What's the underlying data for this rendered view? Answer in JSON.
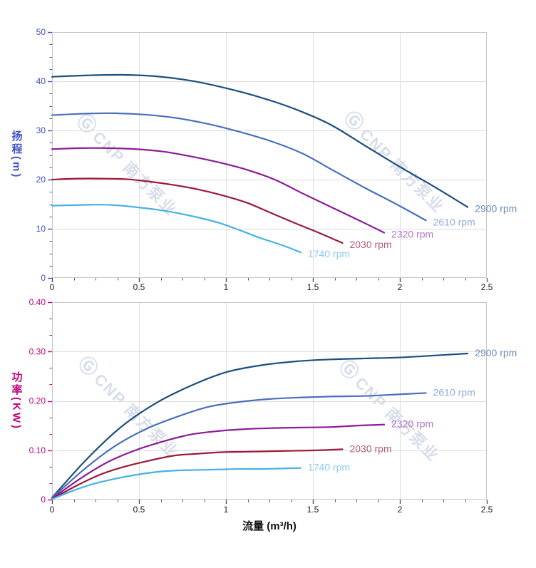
{
  "watermark": {
    "logo": "Ⓖ",
    "text": "CNP 南方泵业"
  },
  "x_axis": {
    "title": "流量 (m³/h)",
    "min": 0,
    "max": 2.5,
    "major_step": 0.5,
    "minor_divisions": 4,
    "tick_labels": [
      "0",
      "0.5",
      "1",
      "1.5",
      "2",
      "2.5"
    ],
    "text_color": "#1b1b1b",
    "tick_color": "#555555"
  },
  "style": {
    "grid_color": "#dcdcdc",
    "border_color": "#c6c6c6",
    "background": "#ffffff"
  },
  "chart_data": [
    {
      "id": "head",
      "type": "line",
      "y_title": "扬程(m)",
      "xlabel": "流量 (m³/h)",
      "ylabel": "扬程 (m)",
      "ylim": [
        0,
        50
      ],
      "xlim": [
        0,
        2.5
      ],
      "y_major_step": 10,
      "y_minor_divisions": 4,
      "y_tick_labels": [
        "0",
        "10",
        "20",
        "30",
        "40",
        "50"
      ],
      "axis_color": "#3f51c1",
      "legend_position": "end-of-line",
      "series": [
        {
          "name": "2900 rpm",
          "rpm": 2900,
          "color": "#1b4f7f",
          "label_color": "#6e8cb4",
          "points": [
            [
              0,
              40.9
            ],
            [
              0.2,
              41.2
            ],
            [
              0.4,
              41.3
            ],
            [
              0.6,
              41.0
            ],
            [
              0.8,
              40.1
            ],
            [
              1.0,
              38.6
            ],
            [
              1.2,
              36.7
            ],
            [
              1.4,
              34.3
            ],
            [
              1.6,
              31.2
            ],
            [
              1.8,
              26.9
            ],
            [
              2.0,
              22.6
            ],
            [
              2.2,
              18.5
            ],
            [
              2.39,
              14.4
            ]
          ]
        },
        {
          "name": "2610 rpm",
          "rpm": 2610,
          "color": "#4a6fbe",
          "label_color": "#91abde",
          "points": [
            [
              0,
              33.1
            ],
            [
              0.18,
              33.4
            ],
            [
              0.36,
              33.5
            ],
            [
              0.54,
              33.2
            ],
            [
              0.72,
              32.5
            ],
            [
              0.9,
              31.3
            ],
            [
              1.08,
              29.7
            ],
            [
              1.26,
              27.8
            ],
            [
              1.44,
              25.3
            ],
            [
              1.62,
              21.8
            ],
            [
              1.8,
              18.3
            ],
            [
              1.98,
              15.0
            ],
            [
              2.15,
              11.7
            ]
          ]
        },
        {
          "name": "2320 rpm",
          "rpm": 2320,
          "color": "#8d1a97",
          "label_color": "#b377c7",
          "points": [
            [
              0,
              26.2
            ],
            [
              0.16,
              26.4
            ],
            [
              0.32,
              26.4
            ],
            [
              0.48,
              26.2
            ],
            [
              0.64,
              25.7
            ],
            [
              0.8,
              24.7
            ],
            [
              0.96,
              23.5
            ],
            [
              1.12,
              22.0
            ],
            [
              1.28,
              20.0
            ],
            [
              1.44,
              17.2
            ],
            [
              1.6,
              14.5
            ],
            [
              1.76,
              11.8
            ],
            [
              1.91,
              9.2
            ]
          ]
        },
        {
          "name": "2030 rpm",
          "rpm": 2030,
          "color": "#9c1a38",
          "label_color": "#b25f78",
          "points": [
            [
              0,
              20.0
            ],
            [
              0.14,
              20.2
            ],
            [
              0.28,
              20.2
            ],
            [
              0.42,
              20.1
            ],
            [
              0.56,
              19.6
            ],
            [
              0.7,
              18.9
            ],
            [
              0.84,
              18.0
            ],
            [
              0.98,
              16.8
            ],
            [
              1.12,
              15.3
            ],
            [
              1.26,
              13.2
            ],
            [
              1.4,
              11.1
            ],
            [
              1.54,
              9.1
            ],
            [
              1.67,
              7.1
            ]
          ]
        },
        {
          "name": "1740 rpm",
          "rpm": 1740,
          "color": "#45b1e6",
          "label_color": "#92c9ee",
          "points": [
            [
              0,
              14.7
            ],
            [
              0.12,
              14.8
            ],
            [
              0.24,
              14.9
            ],
            [
              0.36,
              14.8
            ],
            [
              0.48,
              14.4
            ],
            [
              0.6,
              13.9
            ],
            [
              0.72,
              13.2
            ],
            [
              0.84,
              12.3
            ],
            [
              0.96,
              11.2
            ],
            [
              1.08,
              9.7
            ],
            [
              1.2,
              8.1
            ],
            [
              1.32,
              6.7
            ],
            [
              1.43,
              5.2
            ]
          ]
        }
      ]
    },
    {
      "id": "power",
      "type": "line",
      "y_title": "功率(KW)",
      "xlabel": "流量 (m³/h)",
      "ylabel": "功率 (KW)",
      "ylim": [
        0,
        0.4
      ],
      "xlim": [
        0,
        2.5
      ],
      "y_major_step": 0.1,
      "y_minor_divisions": 3,
      "y_tick_labels": [
        "0",
        "0.10",
        "0.20",
        "0.30",
        "0.40"
      ],
      "axis_color": "#c0067f",
      "legend_position": "end-of-line",
      "series": [
        {
          "name": "2900 rpm",
          "rpm": 2900,
          "color": "#1b4f7f",
          "label_color": "#6e8cb4",
          "points": [
            [
              0,
              0.004
            ],
            [
              0.2,
              0.082
            ],
            [
              0.4,
              0.148
            ],
            [
              0.6,
              0.196
            ],
            [
              0.8,
              0.231
            ],
            [
              1.0,
              0.258
            ],
            [
              1.2,
              0.272
            ],
            [
              1.4,
              0.28
            ],
            [
              1.6,
              0.284
            ],
            [
              1.8,
              0.286
            ],
            [
              2.0,
              0.288
            ],
            [
              2.2,
              0.292
            ],
            [
              2.39,
              0.296
            ]
          ]
        },
        {
          "name": "2610 rpm",
          "rpm": 2610,
          "color": "#4a6fbe",
          "label_color": "#91abde",
          "points": [
            [
              0,
              0.003
            ],
            [
              0.18,
              0.06
            ],
            [
              0.36,
              0.108
            ],
            [
              0.54,
              0.143
            ],
            [
              0.72,
              0.168
            ],
            [
              0.9,
              0.188
            ],
            [
              1.08,
              0.198
            ],
            [
              1.26,
              0.204
            ],
            [
              1.44,
              0.207
            ],
            [
              1.62,
              0.209
            ],
            [
              1.8,
              0.21
            ],
            [
              1.98,
              0.213
            ],
            [
              2.15,
              0.216
            ]
          ]
        },
        {
          "name": "2320 rpm",
          "rpm": 2320,
          "color": "#8d1a97",
          "label_color": "#b377c7",
          "points": [
            [
              0,
              0.002
            ],
            [
              0.16,
              0.042
            ],
            [
              0.32,
              0.076
            ],
            [
              0.48,
              0.1
            ],
            [
              0.64,
              0.118
            ],
            [
              0.8,
              0.132
            ],
            [
              0.96,
              0.139
            ],
            [
              1.12,
              0.143
            ],
            [
              1.28,
              0.145
            ],
            [
              1.44,
              0.146
            ],
            [
              1.6,
              0.147
            ],
            [
              1.76,
              0.15
            ],
            [
              1.91,
              0.152
            ]
          ]
        },
        {
          "name": "2030 rpm",
          "rpm": 2030,
          "color": "#9c1a38",
          "label_color": "#b25f78",
          "points": [
            [
              0,
              0.001
            ],
            [
              0.14,
              0.028
            ],
            [
              0.28,
              0.051
            ],
            [
              0.42,
              0.067
            ],
            [
              0.56,
              0.079
            ],
            [
              0.7,
              0.089
            ],
            [
              0.84,
              0.093
            ],
            [
              0.98,
              0.096
            ],
            [
              1.12,
              0.097
            ],
            [
              1.26,
              0.098
            ],
            [
              1.4,
              0.099
            ],
            [
              1.54,
              0.1
            ],
            [
              1.67,
              0.102
            ]
          ]
        },
        {
          "name": "1740 rpm",
          "rpm": 1740,
          "color": "#45b1e6",
          "label_color": "#92c9ee",
          "points": [
            [
              0,
              0.001
            ],
            [
              0.12,
              0.018
            ],
            [
              0.24,
              0.032
            ],
            [
              0.36,
              0.042
            ],
            [
              0.48,
              0.05
            ],
            [
              0.6,
              0.056
            ],
            [
              0.72,
              0.059
            ],
            [
              0.84,
              0.06
            ],
            [
              0.96,
              0.061
            ],
            [
              1.08,
              0.062
            ],
            [
              1.2,
              0.062
            ],
            [
              1.32,
              0.063
            ],
            [
              1.43,
              0.064
            ]
          ]
        }
      ]
    }
  ]
}
